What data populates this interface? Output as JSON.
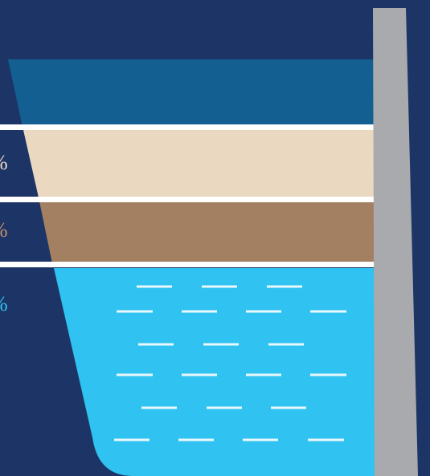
{
  "colors": {
    "background": "#1c3566",
    "clear_water": "#135f92",
    "upper_sediment": "#ead8c0",
    "lower_sediment": "#a38061",
    "water_reserve": "#30c2f0",
    "divider": "#ffffff",
    "pillar": "#a9aaad",
    "wave": "#e9f8fd"
  },
  "labels": [
    {
      "id": "upper-sediment",
      "text": "%",
      "color": "#ead8c0"
    },
    {
      "id": "lower-sediment",
      "text": "%",
      "color": "#c08f6e"
    },
    {
      "id": "water-reserve",
      "text": "%",
      "color": "#30c2f0"
    }
  ]
}
